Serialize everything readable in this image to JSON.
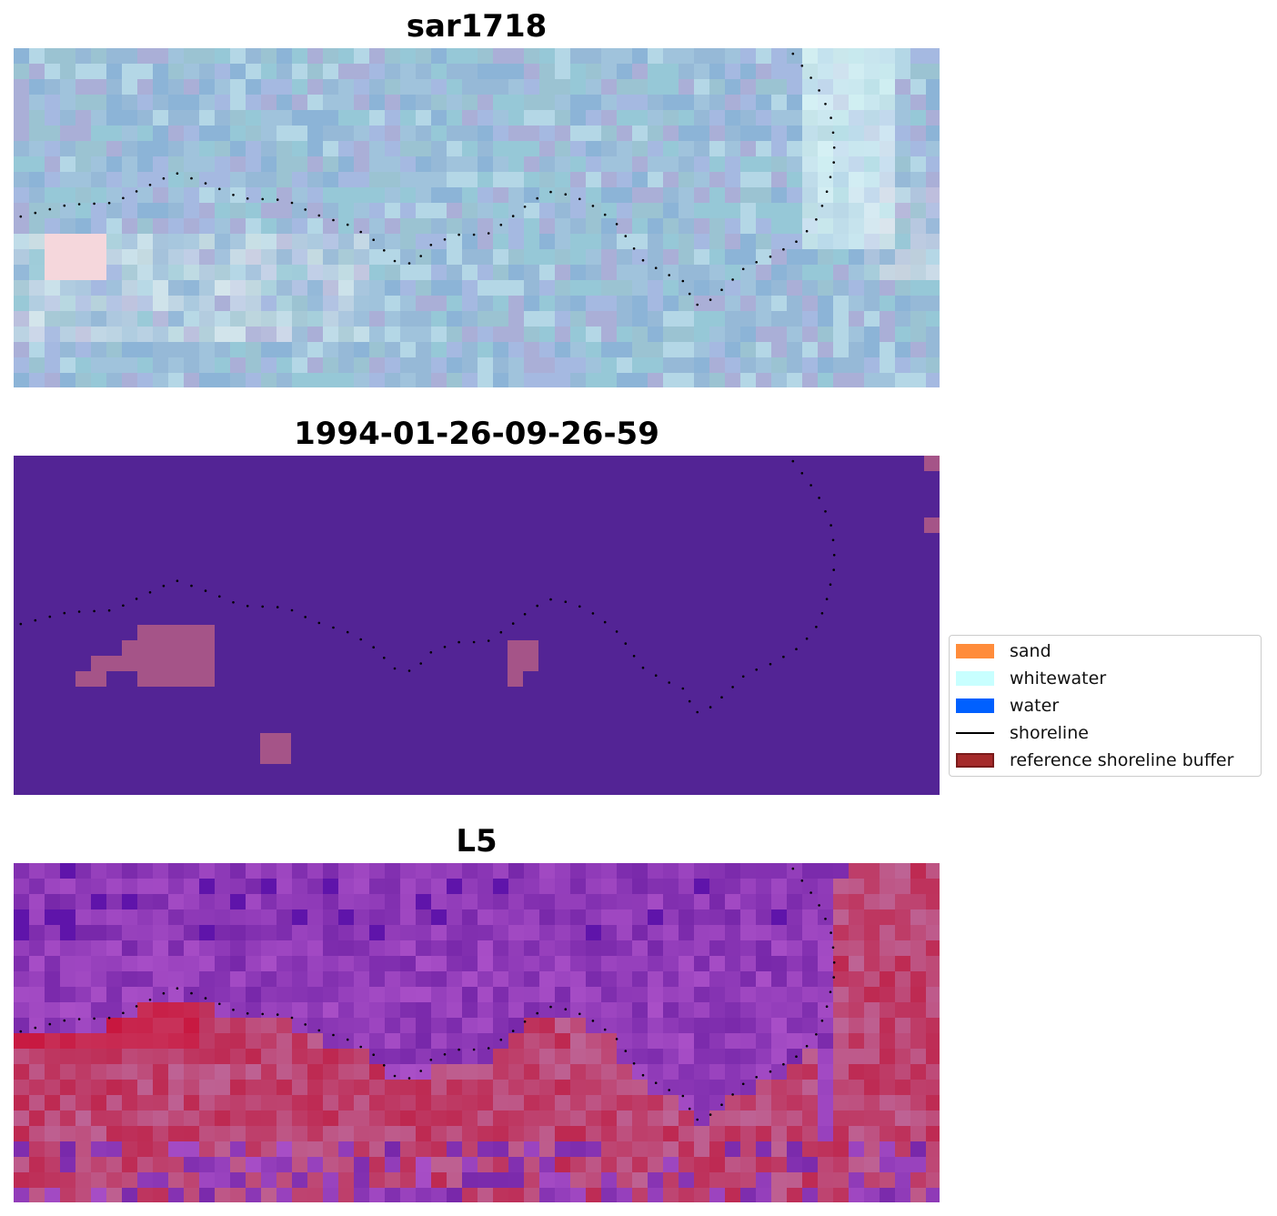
{
  "panels": [
    {
      "id": "p1",
      "title": "sar1718"
    },
    {
      "id": "p2",
      "title": "1994-01-26-09-26-59"
    },
    {
      "id": "p3",
      "title": "L5"
    }
  ],
  "legend": {
    "items": [
      {
        "label": "sand",
        "color": "#ff8c3b",
        "kind": "patch"
      },
      {
        "label": "whitewater",
        "color": "#c8ffff",
        "kind": "patch"
      },
      {
        "label": "water",
        "color": "#0060ff",
        "kind": "patch"
      },
      {
        "label": "shoreline",
        "color": "#000000",
        "kind": "line"
      },
      {
        "label": "reference shoreline buffer",
        "color": "#a52a2a",
        "kind": "patch"
      }
    ]
  },
  "colors": {
    "classification_background": "#532495",
    "classification_patch": "#a55488"
  }
}
